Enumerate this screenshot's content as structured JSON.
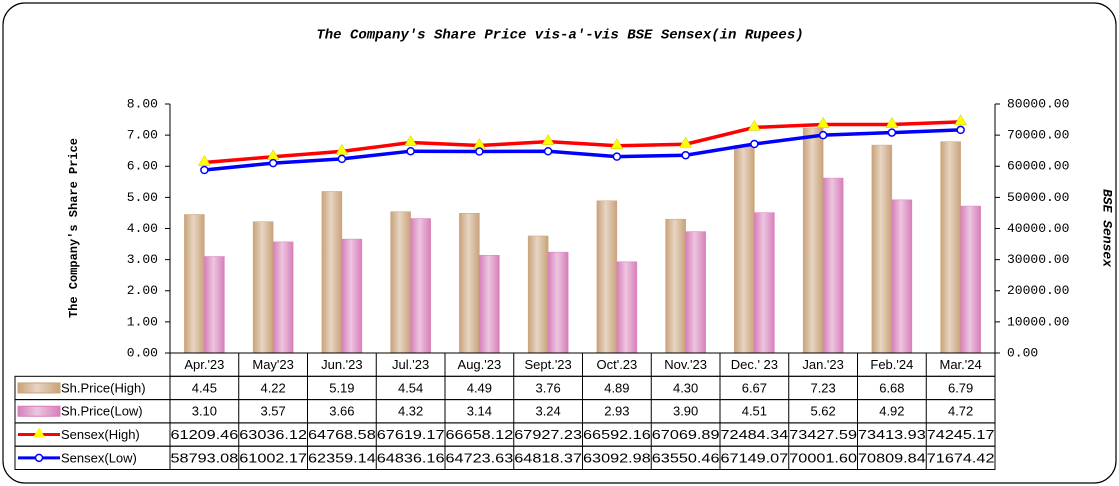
{
  "chart_data": {
    "type": "bar-line-table",
    "title": "The Company's Share Price vis-a'-vis BSE Sensex(in Rupees)",
    "ylabel": "The Company's Share Price",
    "y2label": "BSE Sensex",
    "categories": [
      "Apr.'23",
      "May'23",
      "Jun.'23",
      "Jul.'23",
      "Aug.'23",
      "Sept.'23",
      "Oct'.23",
      "Nov.'23",
      "Dec.' 23",
      "Jan.'23",
      "Feb.'24",
      "Mar.'24"
    ],
    "series": [
      {
        "name": "Sh.Price(High)",
        "type": "bar",
        "color": "#c9a27a",
        "values": [
          4.45,
          4.22,
          5.19,
          4.54,
          4.49,
          3.76,
          4.89,
          4.3,
          6.67,
          7.23,
          6.68,
          6.79
        ],
        "value_labels": [
          "4.45",
          "4.22",
          "5.19",
          "4.54",
          "4.49",
          "3.76",
          "4.89",
          "4.30",
          "6.67",
          "7.23",
          "6.68",
          "6.79"
        ]
      },
      {
        "name": "Sh.Price(Low)",
        "type": "bar",
        "color": "#d77fb9",
        "values": [
          3.1,
          3.57,
          3.66,
          4.32,
          3.14,
          3.24,
          2.93,
          3.9,
          4.51,
          5.62,
          4.92,
          4.72
        ],
        "value_labels": [
          "3.10",
          "3.57",
          "3.66",
          "4.32",
          "3.14",
          "3.24",
          "2.93",
          "3.90",
          "4.51",
          "5.62",
          "4.92",
          "4.72"
        ]
      },
      {
        "name": "Sensex(High)",
        "type": "line",
        "axis": "y2",
        "color": "#ff0000",
        "marker_color": "#ffff00",
        "values": [
          61209.46,
          63036.12,
          64768.58,
          67619.17,
          66658.12,
          67927.23,
          66592.16,
          67069.89,
          72484.34,
          73427.59,
          73413.93,
          74245.17
        ],
        "value_labels": [
          "61209.46",
          "63036.12",
          "64768.58",
          "67619.17",
          "66658.12",
          "67927.23",
          "66592.16",
          "67069.89",
          "72484.34",
          "73427.59",
          "73413.93",
          "74245.17"
        ]
      },
      {
        "name": "Sensex(Low)",
        "type": "line",
        "axis": "y2",
        "color": "#0000ff",
        "marker_color": "#ffffff",
        "values": [
          58793.08,
          61002.17,
          62359.14,
          64836.16,
          64723.63,
          64818.37,
          63092.98,
          63550.46,
          67149.07,
          70001.6,
          70809.84,
          71674.42
        ],
        "value_labels": [
          "58793.08",
          "61002.17",
          "62359.14",
          "64836.16",
          "64723.63",
          "64818.37",
          "63092.98",
          "63550.46",
          "67149.07",
          "70001.60",
          "70809.84",
          "71674.42"
        ]
      }
    ],
    "ylim": [
      0,
      8
    ],
    "yticks": [
      {
        "value": 0,
        "label": "0.00"
      },
      {
        "value": 1,
        "label": "1.00"
      },
      {
        "value": 2,
        "label": "2.00"
      },
      {
        "value": 3,
        "label": "3.00"
      },
      {
        "value": 4,
        "label": "4.00"
      },
      {
        "value": 5,
        "label": "5.00"
      },
      {
        "value": 6,
        "label": "6.00"
      },
      {
        "value": 7,
        "label": "7.00"
      },
      {
        "value": 8,
        "label": "8.00"
      }
    ],
    "y2lim": [
      0,
      80000
    ],
    "y2ticks": [
      {
        "value": 0,
        "label": "0.00"
      },
      {
        "value": 10000,
        "label": "10000.00"
      },
      {
        "value": 20000,
        "label": "20000.00"
      },
      {
        "value": 30000,
        "label": "30000.00"
      },
      {
        "value": 40000,
        "label": "40000.00"
      },
      {
        "value": 50000,
        "label": "50000.00"
      },
      {
        "value": 60000,
        "label": "60000.00"
      },
      {
        "value": 70000,
        "label": "70000.00"
      },
      {
        "value": 80000,
        "label": "80000.00"
      }
    ],
    "grid": false
  }
}
